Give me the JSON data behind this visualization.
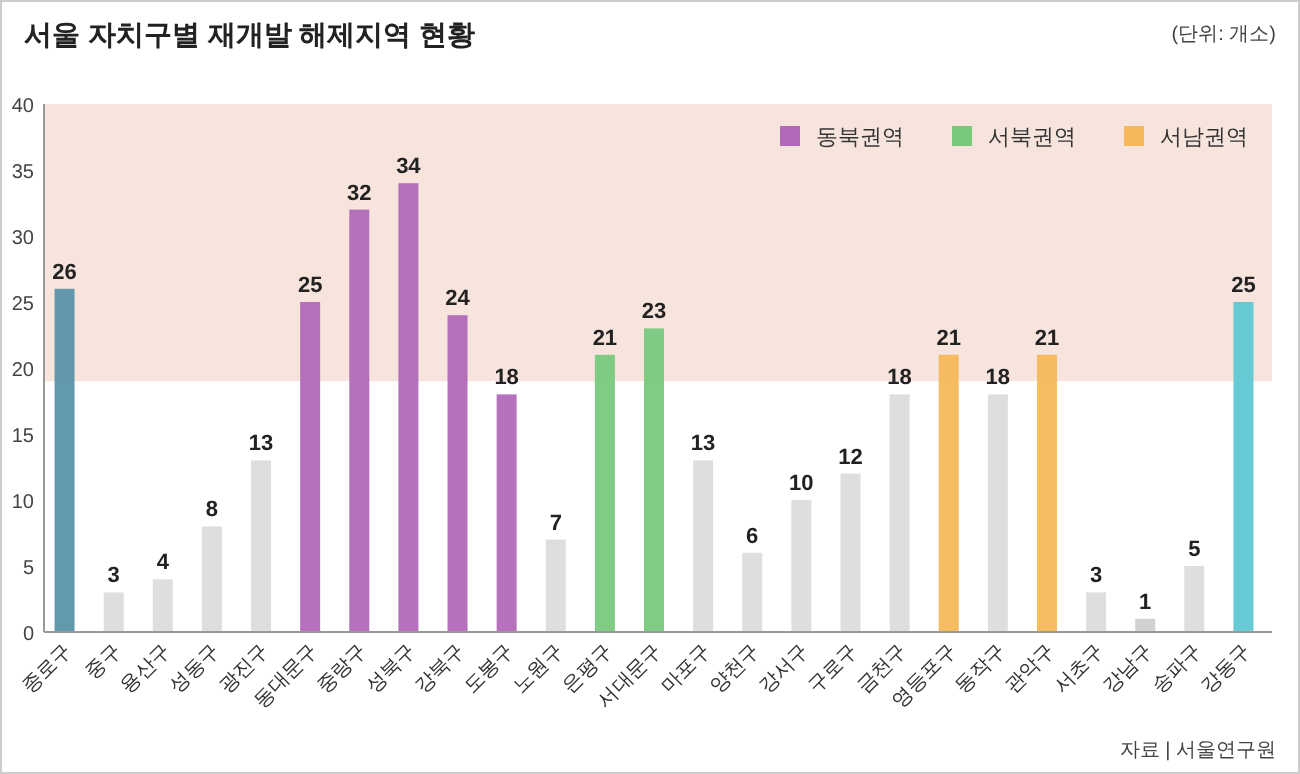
{
  "chart_data": {
    "type": "bar",
    "title": "서울 자치구별 재개발 해제지역 현황",
    "subtitle": "(단위: 개소)",
    "categories": [
      "종로구",
      "중구",
      "용산구",
      "성동구",
      "광진구",
      "동대문구",
      "중랑구",
      "성북구",
      "강북구",
      "도봉구",
      "노원구",
      "은평구",
      "서대문구",
      "마포구",
      "양천구",
      "강서구",
      "구로구",
      "금천구",
      "영등포구",
      "동작구",
      "관악구",
      "서초구",
      "강남구",
      "송파구",
      "강동구"
    ],
    "series": [
      {
        "colors": [
          "#5b93a9",
          "#dcdcdc",
          "#dcdcdc",
          "#dcdcdc",
          "#dcdcdc",
          null,
          null,
          null,
          null,
          null,
          "#dcdcdc",
          null,
          null,
          "#dcdcdc",
          "#dcdcdc",
          "#dcdcdc",
          "#dcdcdc",
          "#dcdcdc",
          null,
          "#dcdcdc",
          null,
          "#dcdcdc",
          "#cfcfcf",
          "#dcdcdc",
          "#5ec8d4"
        ],
        "values": [
          26,
          3,
          4,
          8,
          13,
          null,
          null,
          null,
          null,
          null,
          7,
          null,
          null,
          13,
          6,
          10,
          12,
          18,
          null,
          18,
          null,
          3,
          1,
          5,
          25
        ]
      },
      {
        "name": "동북권역",
        "color": "#b169b8",
        "values": [
          null,
          null,
          null,
          null,
          null,
          25,
          32,
          34,
          24,
          18,
          null,
          null,
          null,
          null,
          null,
          null,
          null,
          null,
          null,
          null,
          null,
          null,
          null,
          null,
          null
        ]
      },
      {
        "name": "서북권역",
        "color": "#79c97d",
        "values": [
          null,
          null,
          null,
          null,
          null,
          null,
          null,
          null,
          null,
          null,
          null,
          21,
          23,
          null,
          null,
          null,
          null,
          null,
          null,
          null,
          null,
          null,
          null,
          null,
          null
        ]
      },
      {
        "name": "서남권역",
        "color": "#f6b85a",
        "values": [
          null,
          null,
          null,
          null,
          null,
          null,
          null,
          null,
          null,
          null,
          null,
          null,
          null,
          null,
          null,
          null,
          null,
          null,
          21,
          null,
          21,
          null,
          null,
          null,
          null
        ]
      }
    ],
    "ylim": [
      0,
      40
    ],
    "yticks": [
      0,
      5,
      10,
      15,
      20,
      25,
      30,
      35,
      40
    ],
    "bands": [
      {
        "axis": "y",
        "from": 19,
        "to": 40,
        "color": "#f7e4dc"
      }
    ],
    "data_labels": true,
    "legend": "top right",
    "grid": false,
    "annotations": [
      "자료 | 서울연구원"
    ]
  }
}
